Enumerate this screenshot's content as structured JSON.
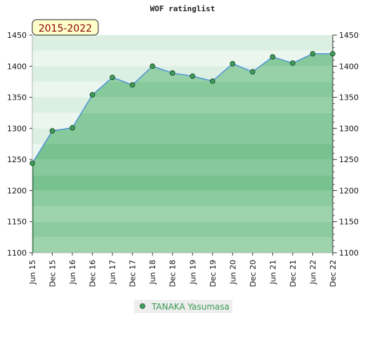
{
  "chart_data": {
    "type": "area",
    "title": "WOF ratinglist",
    "period_label": "2015-2022",
    "ylim": [
      1100,
      1450
    ],
    "yticks": [
      1100,
      1150,
      1200,
      1250,
      1300,
      1350,
      1400,
      1450
    ],
    "categories": [
      "Jun 15",
      "Dec 15",
      "Jun 16",
      "Dec 16",
      "Jun 17",
      "Dec 17",
      "Jun 18",
      "Dec 18",
      "Jun 19",
      "Dec 19",
      "Jun 20",
      "Dec 20",
      "Jun 21",
      "Dec 21",
      "Jun 22",
      "Dec 22"
    ],
    "series": [
      {
        "name": "TANAKA Yasumasa",
        "values": [
          1244,
          1296,
          1301,
          1354,
          1382,
          1370,
          1400,
          1389,
          1384,
          1376,
          1404,
          1391,
          1415,
          1405,
          1420,
          1420
        ]
      }
    ],
    "colors": {
      "area_fill": "#7cc493",
      "line": "#4a90d9",
      "marker": "#3f9c5a",
      "badge_bg": "#ffffcc",
      "legend_text": "#3a9a52"
    },
    "grid": true,
    "legend": "bottom"
  }
}
